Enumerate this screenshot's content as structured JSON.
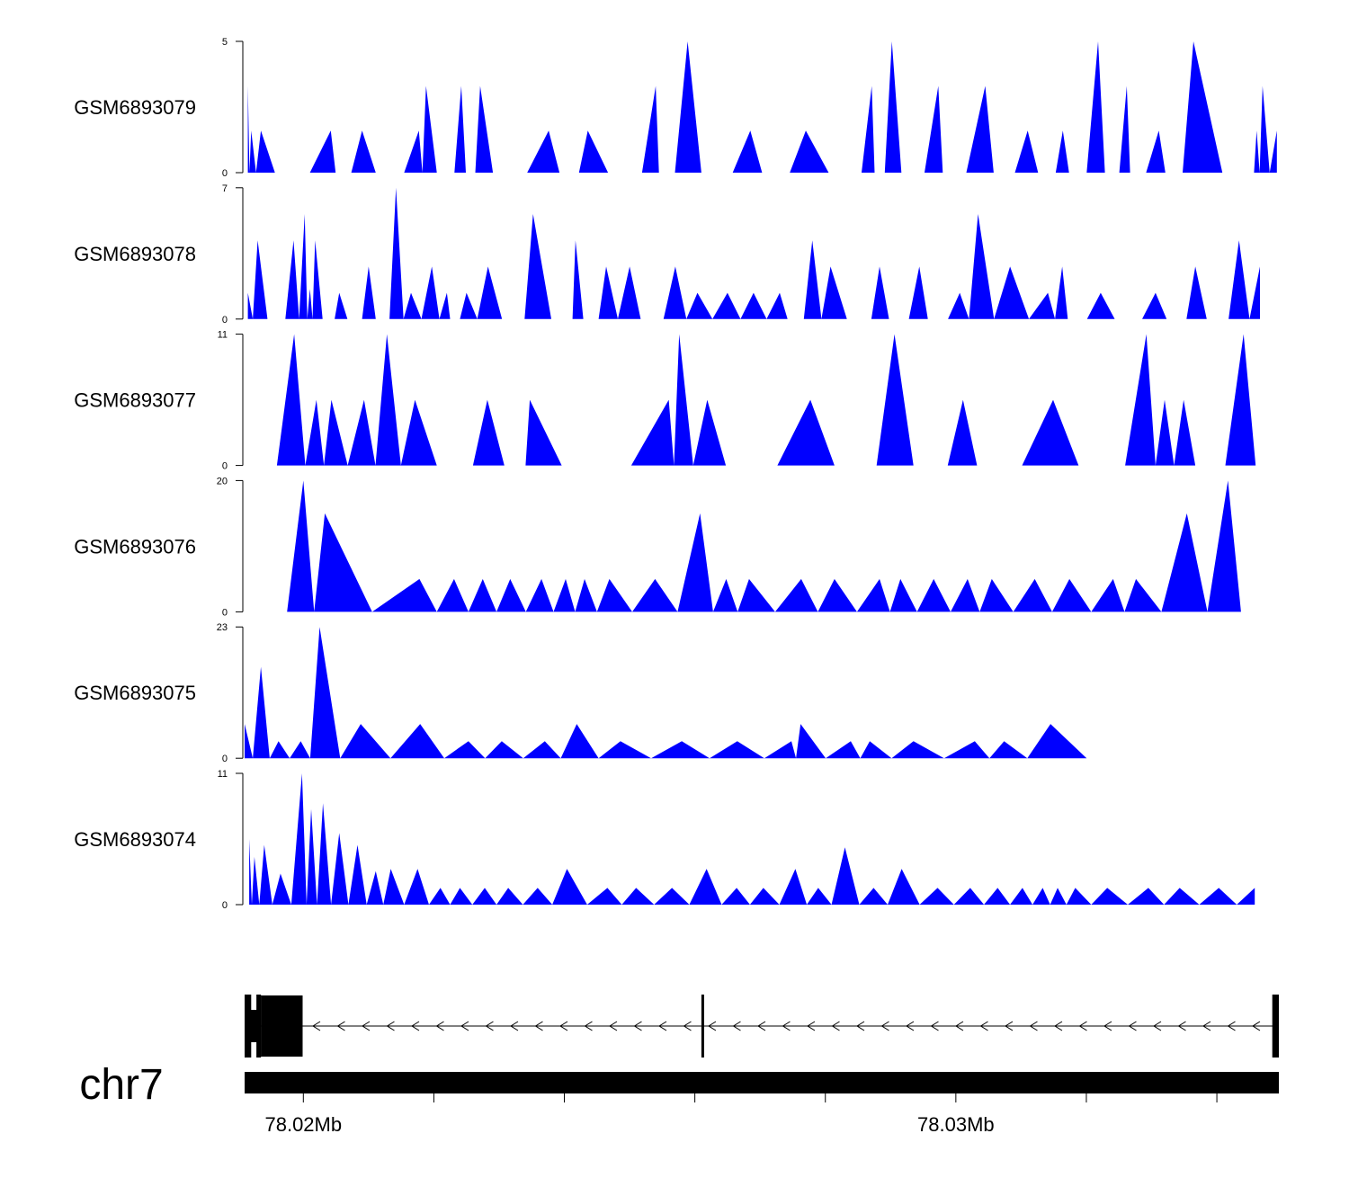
{
  "chart_data": {
    "type": "area",
    "title": "",
    "chromosome": "chr7",
    "xlim": [
      78019100,
      78034950
    ],
    "x_ticks": [
      {
        "value": 78020000,
        "label": "78.02Mb"
      },
      {
        "value": 78022000,
        "label": ""
      },
      {
        "value": 78024000,
        "label": ""
      },
      {
        "value": 78026000,
        "label": ""
      },
      {
        "value": 78028000,
        "label": ""
      },
      {
        "value": 78030000,
        "label": "78.03Mb"
      },
      {
        "value": 78032000,
        "label": ""
      },
      {
        "value": 78034000,
        "label": ""
      }
    ],
    "color": "#0000ff",
    "tracks": [
      {
        "name": "GSM6893079",
        "ymax": 5,
        "ymin_label": "0",
        "ymax_label": "5",
        "x": [
          78019150,
          78019200,
          78019350,
          78019780,
          78020420,
          78020570,
          78020900,
          78021320,
          78021770,
          78021880,
          78022210,
          78022420,
          78022560,
          78022710,
          78023100,
          78023760,
          78024090,
          78024360,
          78024980,
          78025400,
          78025500,
          78025890,
          78026310,
          78026850,
          78027210,
          78027700,
          78028400,
          78028710,
          78028800,
          78029020,
          78029310,
          78029730,
          78029870,
          78030450,
          78030710,
          78031100,
          78031420,
          78031640,
          78031830,
          78032180,
          78032390,
          78032620,
          78032720,
          78033110,
          78033310,
          78033640,
          78034530,
          78034610,
          78034700,
          78034920
        ],
        "y": [
          3.3,
          1.6,
          1.6,
          0,
          1.6,
          0,
          1.6,
          0,
          1.6,
          3.3,
          0,
          3.3,
          0,
          3.3,
          0,
          1.6,
          0,
          1.6,
          0,
          3.3,
          0,
          5,
          0,
          1.6,
          0,
          1.6,
          0,
          3.3,
          0,
          5,
          0,
          3.3,
          0,
          3.3,
          0,
          1.6,
          0,
          1.6,
          0,
          5,
          0,
          3.3,
          0,
          1.6,
          0,
          5,
          0,
          1.6,
          3.3,
          1.6
        ]
      },
      {
        "name": "GSM6893078",
        "ymax": 7,
        "ymin_label": "0",
        "ymax_label": "7",
        "x": [
          78019150,
          78019300,
          78019600,
          78019850,
          78020020,
          78020100,
          78020180,
          78020410,
          78020550,
          78020800,
          78021000,
          78021220,
          78021420,
          78021650,
          78021970,
          78022200,
          78022300,
          78022500,
          78022830,
          78023260,
          78023520,
          78024080,
          78024170,
          78024410,
          78024640,
          78025000,
          78025340,
          78025700,
          78026040,
          78026500,
          78026900,
          78027300,
          78027540,
          78027800,
          78028080,
          78028580,
          78028830,
          78029120,
          78029440,
          78029700,
          78030060,
          78030340,
          78030830,
          78031410,
          78031630,
          78031800,
          78032220,
          78032650,
          78033060,
          78033400,
          78033670,
          78034020,
          78034340,
          78034660
        ],
        "y": [
          1.4,
          4.2,
          0,
          4.2,
          5.6,
          1.6,
          4.2,
          0,
          1.4,
          0,
          2.8,
          0,
          7,
          1.4,
          2.8,
          1.4,
          0,
          1.4,
          2.8,
          0,
          5.6,
          0,
          4.2,
          0,
          2.8,
          2.8,
          0,
          2.8,
          1.4,
          1.4,
          1.4,
          1.4,
          0,
          4.2,
          2.8,
          0,
          2.8,
          0,
          2.8,
          0,
          1.4,
          5.6,
          2.8,
          1.4,
          2.8,
          0,
          1.4,
          0,
          1.4,
          0,
          2.8,
          0,
          4.2,
          2.8
        ]
      },
      {
        "name": "GSM6893077",
        "ymax": 11,
        "ymin_label": "0",
        "ymax_label": "11",
        "x": [
          78019330,
          78019860,
          78020200,
          78020430,
          78020930,
          78021280,
          78021710,
          78022380,
          78022820,
          78023340,
          78023470,
          78024450,
          78025600,
          78025760,
          78026190,
          78026760,
          78027770,
          78028510,
          78029060,
          78029640,
          78030110,
          78030540,
          78031490,
          78032270,
          78032920,
          78033200,
          78033490,
          78033850,
          78034410,
          78034780
        ],
        "y": [
          0,
          11,
          5.5,
          5.5,
          5.5,
          11,
          5.5,
          0,
          5.5,
          0,
          5.5,
          0,
          5.5,
          11,
          5.5,
          0,
          5.5,
          0,
          11,
          0,
          5.5,
          0,
          5.5,
          0,
          11,
          5.5,
          5.5,
          0,
          11,
          0
        ],
        "x_max_peaks": true
      },
      {
        "name": "GSM6893076",
        "ymax": 20,
        "ymin_label": "0",
        "ymax_label": "20",
        "x": [
          78019500,
          78020000,
          78020330,
          78021780,
          78022310,
          78022750,
          78023170,
          78023650,
          78024020,
          78024310,
          78024690,
          78025390,
          78026080,
          78026480,
          78026830,
          78027630,
          78028140,
          78028830,
          78029150,
          78029660,
          78030180,
          78030550,
          78031210,
          78031740,
          78032410,
          78032760,
          78033540,
          78034170,
          78034570
        ],
        "y": [
          0,
          20,
          15,
          5,
          5,
          5,
          5,
          5,
          5,
          5,
          5,
          5,
          15,
          5,
          5,
          5,
          5,
          5,
          5,
          5,
          5,
          5,
          5,
          5,
          5,
          5,
          15,
          20,
          0
        ]
      },
      {
        "name": "GSM6893075",
        "ymax": 23,
        "ymin_label": "0",
        "ymax_label": "23",
        "x": [
          78019100,
          78019350,
          78019620,
          78019960,
          78020250,
          78020880,
          78021790,
          78022530,
          78023040,
          78023700,
          78024190,
          78024860,
          78025800,
          78026650,
          78027480,
          78027620,
          78028390,
          78028680,
          78029350,
          78030290,
          78030740,
          78031450,
          78032560
        ],
        "y": [
          6,
          16,
          3,
          3,
          23,
          6,
          6,
          3,
          3,
          3,
          6,
          3,
          3,
          3,
          3,
          6,
          3,
          3,
          3,
          3,
          3,
          6,
          0
        ]
      },
      {
        "name": "GSM6893074",
        "ymax": 11,
        "ymin_label": "0",
        "ymax_label": "11",
        "x": [
          78019170,
          78019250,
          78019400,
          78019650,
          78019980,
          78020120,
          78020300,
          78020550,
          78020830,
          78021110,
          78021340,
          78021750,
          78022100,
          78022400,
          78022780,
          78023140,
          78023590,
          78024040,
          78024660,
          78025100,
          78025650,
          78026180,
          78026640,
          78027050,
          78027540,
          78027890,
          78028300,
          78028740,
          78029170,
          78029720,
          78030220,
          78030640,
          78031020,
          78031330,
          78031560,
          78031830,
          78032320,
          78032950,
          78033430,
          78034030,
          78034580
        ],
        "y": [
          5.5,
          4,
          5,
          2.6,
          11,
          8,
          8.5,
          6,
          5,
          2.8,
          3,
          3,
          1.4,
          1.4,
          1.4,
          1.4,
          1.4,
          3,
          1.4,
          1.4,
          1.4,
          3,
          1.4,
          1.4,
          3,
          1.4,
          4.8,
          1.4,
          3,
          1.4,
          1.4,
          1.4,
          1.4,
          1.4,
          1.4,
          1.4,
          1.4,
          1.4,
          1.4,
          1.4,
          1.4
        ]
      }
    ],
    "gene_model": {
      "strand": "-",
      "exons": [
        [
          78019100,
          78019200
        ],
        [
          78019280,
          78019350
        ],
        [
          78019350,
          78019990
        ],
        [
          78026100,
          78026120
        ],
        [
          78034850,
          78034950
        ]
      ]
    }
  }
}
